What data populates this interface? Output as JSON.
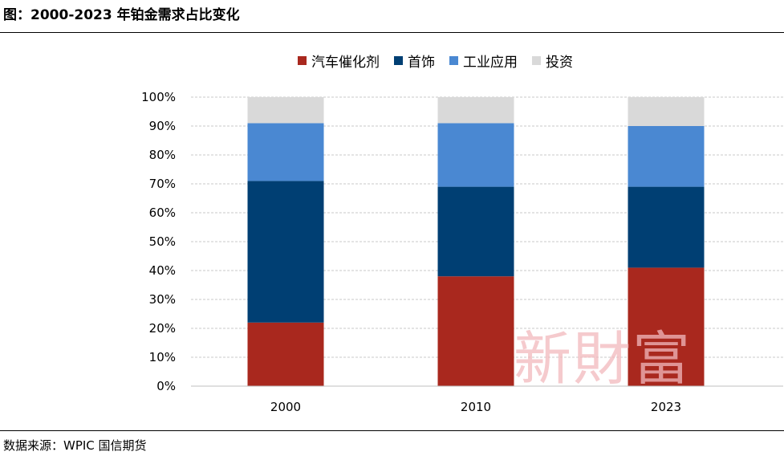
{
  "header": {
    "title": "图：2000-2023 年铂金需求占比变化"
  },
  "footer": {
    "source": "数据来源：WPIC  国信期货"
  },
  "watermark": {
    "text": "新財富"
  },
  "chart_data": {
    "type": "bar",
    "stacked": true,
    "categories": [
      "2000",
      "2010",
      "2023"
    ],
    "series": [
      {
        "name": "汽车催化剂",
        "color": "#a9281e",
        "values": [
          22,
          38,
          41
        ]
      },
      {
        "name": "首饰",
        "color": "#003f73",
        "values": [
          49,
          31,
          28
        ]
      },
      {
        "name": "工业应用",
        "color": "#4a88d2",
        "values": [
          20,
          22,
          21
        ]
      },
      {
        "name": "投资",
        "color": "#d9d9d9",
        "values": [
          9,
          9,
          10
        ]
      }
    ],
    "yticks": [
      "0%",
      "10%",
      "20%",
      "30%",
      "40%",
      "50%",
      "60%",
      "70%",
      "80%",
      "90%",
      "100%"
    ],
    "ylim": [
      0,
      100
    ],
    "grid": true,
    "legend_position": "top"
  }
}
